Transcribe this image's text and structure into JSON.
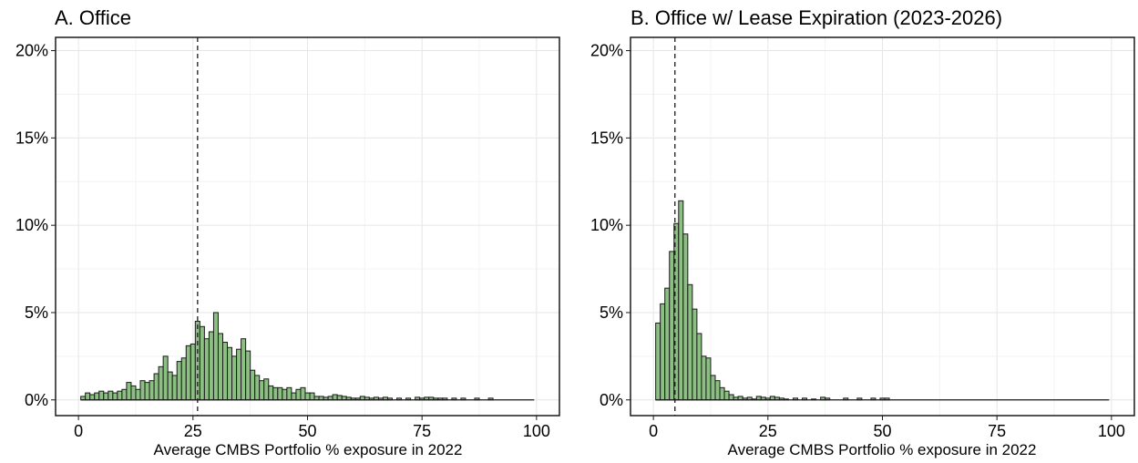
{
  "colors": {
    "bar_fill": "#8cbf82",
    "bar_stroke": "#1a1a1a",
    "grid_major": "#e6e6e6",
    "grid_minor": "#f3f3f3",
    "frame": "#1a1a1a",
    "mean_line": "#1a1a1a"
  },
  "chart_data": [
    {
      "type": "histogram",
      "title": "A. Office",
      "xlabel": "Average CMBS Portfolio % exposure in 2022",
      "ylabel": "",
      "xlim": [
        -5,
        105
      ],
      "ylim": [
        -0.009,
        0.2076
      ],
      "x_ticks": [
        0,
        25,
        50,
        75,
        100
      ],
      "x_tick_labels": [
        "0",
        "25",
        "50",
        "75",
        "100"
      ],
      "y_ticks": [
        0,
        0.05,
        0.1,
        0.15,
        0.2
      ],
      "y_tick_labels": [
        "0%",
        "5%",
        "10%",
        "15%",
        "20%"
      ],
      "grid": true,
      "bin_start": 0.5,
      "bin_width": 1,
      "bin_end": 99.5,
      "mean_line_x": 26,
      "values": [
        0.002,
        0.004,
        0.003,
        0.004,
        0.005,
        0.004,
        0.005,
        0.004,
        0.005,
        0.006,
        0.01,
        0.008,
        0.006,
        0.011,
        0.01,
        0.011,
        0.015,
        0.019,
        0.025,
        0.016,
        0.014,
        0.022,
        0.024,
        0.031,
        0.032,
        0.045,
        0.042,
        0.035,
        0.039,
        0.05,
        0.038,
        0.033,
        0.03,
        0.025,
        0.029,
        0.035,
        0.028,
        0.017,
        0.014,
        0.011,
        0.012,
        0.008,
        0.007,
        0.007,
        0.006,
        0.007,
        0.004,
        0.006,
        0.007,
        0.004,
        0.004,
        0.002,
        0.002,
        0.0015,
        0.002,
        0.003,
        0.0025,
        0.002,
        0.0015,
        0.001,
        0.001,
        0.002,
        0.0015,
        0.001,
        0.0015,
        0.001,
        0.0015,
        0.001,
        0,
        0.001,
        0,
        0.001,
        0,
        0.0015,
        0.001,
        0.0015,
        0.0015,
        0.001,
        0.001,
        0.001,
        0,
        0.001,
        0,
        0.001,
        0,
        0,
        0.001,
        0,
        0,
        0.001
      ]
    },
    {
      "type": "histogram",
      "title": "B. Office w/ Lease Expiration (2023-2026)",
      "xlabel": "Average CMBS Portfolio % exposure in 2022",
      "ylabel": "",
      "xlim": [
        -5,
        105
      ],
      "ylim": [
        -0.009,
        0.2076
      ],
      "x_ticks": [
        0,
        25,
        50,
        75,
        100
      ],
      "x_tick_labels": [
        "0",
        "25",
        "50",
        "75",
        "100"
      ],
      "y_ticks": [
        0,
        0.05,
        0.1,
        0.15,
        0.2
      ],
      "y_tick_labels": [
        "0%",
        "5%",
        "10%",
        "15%",
        "20%"
      ],
      "grid": true,
      "bin_start": 0.5,
      "bin_width": 1,
      "bin_end": 99.5,
      "mean_line_x": 4.7,
      "values": [
        0.044,
        0.055,
        0.064,
        0.085,
        0.101,
        0.114,
        0.095,
        0.066,
        0.052,
        0.038,
        0.025,
        0.024,
        0.014,
        0.011,
        0.007,
        0.005,
        0.003,
        0.0015,
        0.002,
        0.001,
        0.0015,
        0.0005,
        0.002,
        0.0015,
        0.001,
        0.002,
        0.0015,
        0.001,
        0.0005,
        0,
        0.001,
        0,
        0.001,
        0,
        0.0005,
        0,
        0.0015,
        0.001,
        0,
        0,
        0,
        0.001,
        0,
        0,
        0.001,
        0,
        0,
        0.001,
        0,
        0.001,
        0.001
      ]
    }
  ]
}
